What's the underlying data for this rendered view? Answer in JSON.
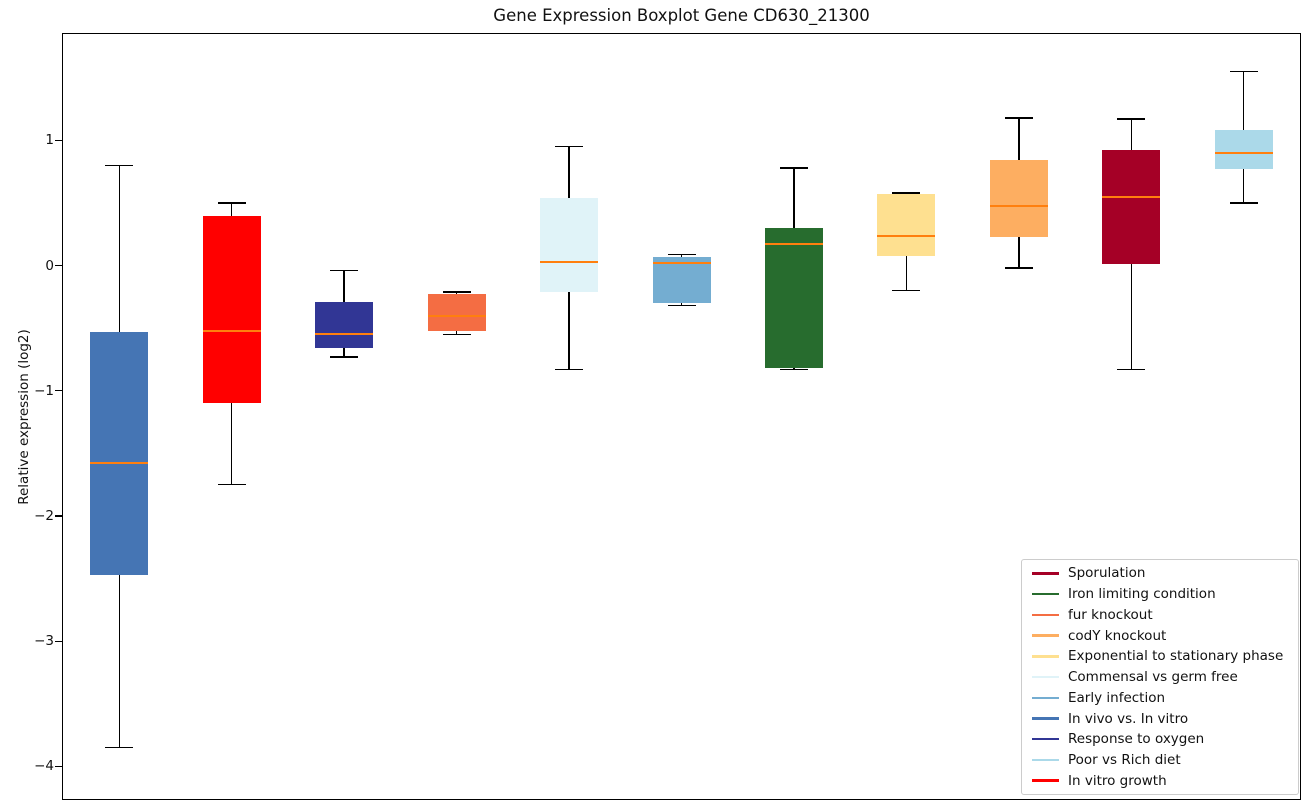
{
  "chart_data": {
    "type": "boxplot",
    "title": "Gene Expression Boxplot Gene CD630_21300",
    "ylabel": "Relative expression (log2)",
    "xlabel": "",
    "ylim": [
      -4.26,
      1.85
    ],
    "yticks": [
      {
        "value": 1,
        "label": "1"
      },
      {
        "value": 0,
        "label": "0"
      },
      {
        "value": -1,
        "label": "−1"
      },
      {
        "value": -2,
        "label": "−2"
      },
      {
        "value": -3,
        "label": "−3"
      },
      {
        "value": -4,
        "label": "−4"
      }
    ],
    "grid": false,
    "median_color": "#FF7F0E",
    "whisker_color": "#000000",
    "boxes": [
      {
        "name": "In vivo vs. In vitro",
        "color": "#4575B4",
        "whislo": -3.85,
        "q1": -2.47,
        "med": -1.58,
        "q3": -0.53,
        "whishi": 0.8
      },
      {
        "name": "In vitro growth",
        "color": "#FF0000",
        "whislo": -1.75,
        "q1": -1.1,
        "med": -0.52,
        "q3": 0.4,
        "whishi": 0.5
      },
      {
        "name": "Response to oxygen",
        "color": "#313695",
        "whislo": -0.73,
        "q1": -0.66,
        "med": -0.55,
        "q3": -0.29,
        "whishi": -0.04
      },
      {
        "name": "fur knockout",
        "color": "#F46D43",
        "whislo": -0.55,
        "q1": -0.52,
        "med": -0.4,
        "q3": -0.23,
        "whishi": -0.21
      },
      {
        "name": "Commensal vs germ free",
        "color": "#E0F3F8",
        "whislo": -0.83,
        "q1": -0.21,
        "med": 0.03,
        "q3": 0.54,
        "whishi": 0.95
      },
      {
        "name": "Early infection",
        "color": "#74ADD1",
        "whislo": -0.32,
        "q1": -0.3,
        "med": 0.02,
        "q3": 0.07,
        "whishi": 0.09
      },
      {
        "name": "Iron limiting condition",
        "color": "#276C2E",
        "whislo": -0.83,
        "q1": -0.82,
        "med": 0.17,
        "q3": 0.3,
        "whishi": 0.78
      },
      {
        "name": "Exponential to stationary phase",
        "color": "#FEE090",
        "whislo": -0.2,
        "q1": 0.08,
        "med": 0.24,
        "q3": 0.57,
        "whishi": 0.58
      },
      {
        "name": "codY knockout",
        "color": "#FDAE61",
        "whislo": -0.02,
        "q1": 0.23,
        "med": 0.48,
        "q3": 0.84,
        "whishi": 1.18
      },
      {
        "name": "Sporulation",
        "color": "#A50026",
        "whislo": -0.83,
        "q1": 0.01,
        "med": 0.55,
        "q3": 0.92,
        "whishi": 1.17
      },
      {
        "name": "Poor vs Rich diet",
        "color": "#ABD9E9",
        "whislo": 0.5,
        "q1": 0.77,
        "med": 0.9,
        "q3": 1.08,
        "whishi": 1.55
      }
    ],
    "legend": {
      "position": "lower right",
      "entries": [
        {
          "label": "Sporulation",
          "color": "#A50026"
        },
        {
          "label": "Iron limiting condition",
          "color": "#276C2E"
        },
        {
          "label": "fur knockout",
          "color": "#F46D43"
        },
        {
          "label": "codY knockout",
          "color": "#FDAE61"
        },
        {
          "label": "Exponential to stationary phase",
          "color": "#FEE090"
        },
        {
          "label": "Commensal vs germ free",
          "color": "#E0F3F8"
        },
        {
          "label": "Early infection",
          "color": "#74ADD1"
        },
        {
          "label": "In vivo vs. In vitro",
          "color": "#4575B4"
        },
        {
          "label": "Response to oxygen",
          "color": "#313695"
        },
        {
          "label": "Poor vs Rich diet",
          "color": "#ABD9E9"
        },
        {
          "label": "In vitro growth",
          "color": "#FF0000"
        }
      ]
    }
  }
}
